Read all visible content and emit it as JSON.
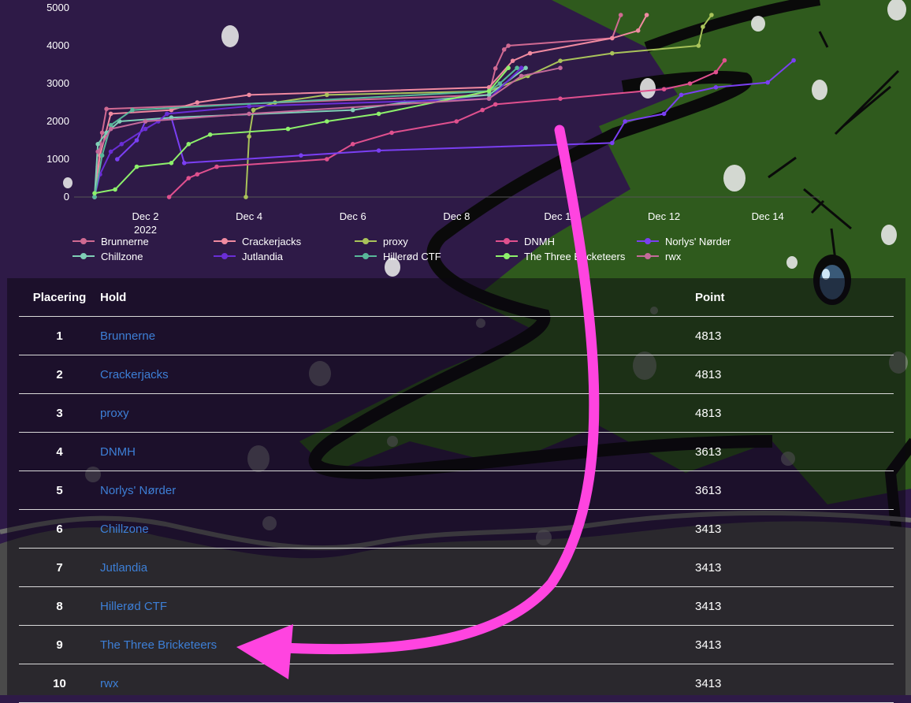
{
  "chart": {
    "x_ticks": [
      {
        "label": "Dec 2",
        "sub": "2022"
      },
      {
        "label": "Dec 4",
        "sub": ""
      },
      {
        "label": "Dec 6",
        "sub": ""
      },
      {
        "label": "Dec 8",
        "sub": ""
      },
      {
        "label": "Dec 10",
        "sub": ""
      },
      {
        "label": "Dec 12",
        "sub": ""
      },
      {
        "label": "Dec 14",
        "sub": ""
      }
    ],
    "y_ticks": [
      "0",
      "1000",
      "2000",
      "3000",
      "4000",
      "5000"
    ]
  },
  "chart_data": {
    "type": "line",
    "xlabel": "",
    "ylabel": "",
    "ylim": [
      0,
      5000
    ],
    "xlim": [
      "2022-11-30T15:00",
      "2022-12-15T00:00"
    ],
    "grid": false,
    "legend_position": "bottom",
    "series": [
      {
        "name": "Brunnerne",
        "color": "#d06a92",
        "points": [
          [
            "2022-12-01T00:30",
            0
          ],
          [
            "2022-12-01T02:00",
            800
          ],
          [
            "2022-12-01T04:00",
            1700
          ],
          [
            "2022-12-01T06:00",
            2330
          ],
          [
            "2022-12-08T15:00",
            2700
          ],
          [
            "2022-12-08T18:00",
            3400
          ],
          [
            "2022-12-08T22:00",
            3900
          ],
          [
            "2022-12-09T00:00",
            4000
          ],
          [
            "2022-12-11T00:00",
            4200
          ],
          [
            "2022-12-11T04:00",
            4813
          ]
        ]
      },
      {
        "name": "Crackerjacks",
        "color": "#f08aa0",
        "points": [
          [
            "2022-12-01T00:30",
            0
          ],
          [
            "2022-12-01T03:00",
            1100
          ],
          [
            "2022-12-01T08:00",
            2200
          ],
          [
            "2022-12-02T12:00",
            2300
          ],
          [
            "2022-12-03T00:00",
            2500
          ],
          [
            "2022-12-04T00:00",
            2700
          ],
          [
            "2022-12-08T15:00",
            2900
          ],
          [
            "2022-12-09T02:00",
            3600
          ],
          [
            "2022-12-09T10:00",
            3800
          ],
          [
            "2022-12-11T00:00",
            4200
          ],
          [
            "2022-12-11T12:00",
            4400
          ],
          [
            "2022-12-11T16:00",
            4813
          ]
        ]
      },
      {
        "name": "proxy",
        "color": "#a9c35a",
        "points": [
          [
            "2022-12-03T22:30",
            0
          ],
          [
            "2022-12-04T00:00",
            1600
          ],
          [
            "2022-12-04T02:00",
            2300
          ],
          [
            "2022-12-04T12:00",
            2500
          ],
          [
            "2022-12-05T12:00",
            2700
          ],
          [
            "2022-12-08T15:00",
            2800
          ],
          [
            "2022-12-09T09:00",
            3200
          ],
          [
            "2022-12-10T00:00",
            3600
          ],
          [
            "2022-12-11T00:00",
            3800
          ],
          [
            "2022-12-12T16:00",
            4000
          ],
          [
            "2022-12-12T18:00",
            4500
          ],
          [
            "2022-12-12T22:00",
            4813
          ]
        ]
      },
      {
        "name": "DNMH",
        "color": "#e0508e",
        "points": [
          [
            "2022-12-02T11:00",
            0
          ],
          [
            "2022-12-02T20:00",
            500
          ],
          [
            "2022-12-03T00:00",
            600
          ],
          [
            "2022-12-03T09:00",
            800
          ],
          [
            "2022-12-05T12:00",
            1000
          ],
          [
            "2022-12-06T00:00",
            1400
          ],
          [
            "2022-12-06T18:00",
            1700
          ],
          [
            "2022-12-08T00:00",
            2000
          ],
          [
            "2022-12-08T12:00",
            2300
          ],
          [
            "2022-12-08T18:00",
            2450
          ],
          [
            "2022-12-10T00:00",
            2600
          ],
          [
            "2022-12-12T00:00",
            2850
          ],
          [
            "2022-12-12T12:00",
            3000
          ],
          [
            "2022-12-13T00:00",
            3300
          ],
          [
            "2022-12-13T04:00",
            3613
          ]
        ]
      },
      {
        "name": "Norlys' Nørder",
        "color": "#7a3ff2",
        "points": [
          [
            "2022-12-01T11:00",
            1000
          ],
          [
            "2022-12-01T20:00",
            1500
          ],
          [
            "2022-12-02T00:00",
            2000
          ],
          [
            "2022-12-02T12:00",
            2100
          ],
          [
            "2022-12-02T18:00",
            900
          ],
          [
            "2022-12-05T00:00",
            1100
          ],
          [
            "2022-12-06T12:00",
            1230
          ],
          [
            "2022-12-11T00:00",
            1430
          ],
          [
            "2022-12-11T06:00",
            2000
          ],
          [
            "2022-12-12T00:00",
            2200
          ],
          [
            "2022-12-12T08:00",
            2700
          ],
          [
            "2022-12-13T00:00",
            2900
          ],
          [
            "2022-12-14T00:00",
            3030
          ],
          [
            "2022-12-14T12:00",
            3613
          ]
        ]
      },
      {
        "name": "Chillzone",
        "color": "#7fcfb6",
        "points": [
          [
            "2022-12-01T00:30",
            0
          ],
          [
            "2022-12-01T02:00",
            1400
          ],
          [
            "2022-12-01T06:00",
            1700
          ],
          [
            "2022-12-01T12:00",
            2000
          ],
          [
            "2022-12-02T12:00",
            2100
          ],
          [
            "2022-12-06T00:00",
            2300
          ],
          [
            "2022-12-07T00:00",
            2500
          ],
          [
            "2022-12-08T15:00",
            2700
          ],
          [
            "2022-12-09T08:00",
            3413
          ]
        ]
      },
      {
        "name": "Jutlandia",
        "color": "#6a2ed6",
        "points": [
          [
            "2022-12-01T00:30",
            0
          ],
          [
            "2022-12-01T03:00",
            600
          ],
          [
            "2022-12-01T08:00",
            1200
          ],
          [
            "2022-12-01T13:00",
            1400
          ],
          [
            "2022-12-02T00:00",
            1800
          ],
          [
            "2022-12-02T06:00",
            2000
          ],
          [
            "2022-12-02T10:00",
            2200
          ],
          [
            "2022-12-04T00:00",
            2400
          ],
          [
            "2022-12-08T15:00",
            2600
          ],
          [
            "2022-12-09T06:00",
            3413
          ]
        ]
      },
      {
        "name": "Hillerød CTF",
        "color": "#58b89a",
        "points": [
          [
            "2022-12-01T00:30",
            0
          ],
          [
            "2022-12-01T04:00",
            1100
          ],
          [
            "2022-12-01T08:00",
            1900
          ],
          [
            "2022-12-01T18:00",
            2300
          ],
          [
            "2022-12-08T15:00",
            2800
          ],
          [
            "2022-12-08T20:00",
            3000
          ],
          [
            "2022-12-09T04:00",
            3413
          ]
        ]
      },
      {
        "name": "The Three Bricketeers",
        "color": "#8df06b",
        "points": [
          [
            "2022-12-01T00:30",
            100
          ],
          [
            "2022-12-01T10:00",
            200
          ],
          [
            "2022-12-01T20:00",
            800
          ],
          [
            "2022-12-02T12:00",
            900
          ],
          [
            "2022-12-02T20:00",
            1400
          ],
          [
            "2022-12-03T06:00",
            1650
          ],
          [
            "2022-12-04T18:00",
            1800
          ],
          [
            "2022-12-05T12:00",
            2000
          ],
          [
            "2022-12-06T12:00",
            2200
          ],
          [
            "2022-12-08T15:00",
            2800
          ],
          [
            "2022-12-09T00:00",
            3413
          ]
        ]
      },
      {
        "name": "rwx",
        "color": "#c46a9a",
        "points": [
          [
            "2022-12-01T02:00",
            1200
          ],
          [
            "2022-12-01T08:00",
            1800
          ],
          [
            "2022-12-02T00:00",
            2000
          ],
          [
            "2022-12-04T00:00",
            2200
          ],
          [
            "2022-12-08T15:00",
            2600
          ],
          [
            "2022-12-09T06:00",
            3200
          ],
          [
            "2022-12-10T00:00",
            3413
          ]
        ]
      }
    ]
  },
  "scoreboard": {
    "columns": {
      "rank": "Placering",
      "team": "Hold",
      "points": "Point"
    },
    "rows": [
      {
        "rank": "1",
        "team": "Brunnerne",
        "points": "4813"
      },
      {
        "rank": "2",
        "team": "Crackerjacks",
        "points": "4813"
      },
      {
        "rank": "3",
        "team": "proxy",
        "points": "4813"
      },
      {
        "rank": "4",
        "team": "DNMH",
        "points": "3613"
      },
      {
        "rank": "5",
        "team": "Norlys' Nørder",
        "points": "3613"
      },
      {
        "rank": "6",
        "team": "Chillzone",
        "points": "3413"
      },
      {
        "rank": "7",
        "team": "Jutlandia",
        "points": "3413"
      },
      {
        "rank": "8",
        "team": "Hillerød CTF",
        "points": "3413"
      },
      {
        "rank": "9",
        "team": "The Three Bricketeers",
        "points": "3413"
      },
      {
        "rank": "10",
        "team": "rwx",
        "points": "3413"
      }
    ]
  },
  "annotation": {
    "arrow_color": "#ff44e0",
    "points_to": "The Three Bricketeers"
  }
}
